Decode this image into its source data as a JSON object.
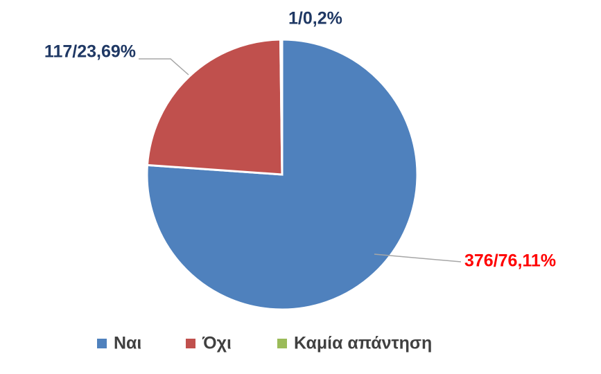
{
  "chart_data": {
    "type": "pie",
    "categories": [
      "Ναι",
      "Όχι",
      "Καμία απάντηση"
    ],
    "values": [
      376,
      117,
      1
    ],
    "value_labels": [
      "376/76,11%",
      "117/23,69%",
      "1/0,2%"
    ],
    "colors": [
      "#4f81bd",
      "#c0504d",
      "#9bbb59"
    ],
    "value_label_colors": [
      "#ff0000",
      "#1f3864",
      "#1f3864"
    ],
    "legend": "bottom"
  }
}
